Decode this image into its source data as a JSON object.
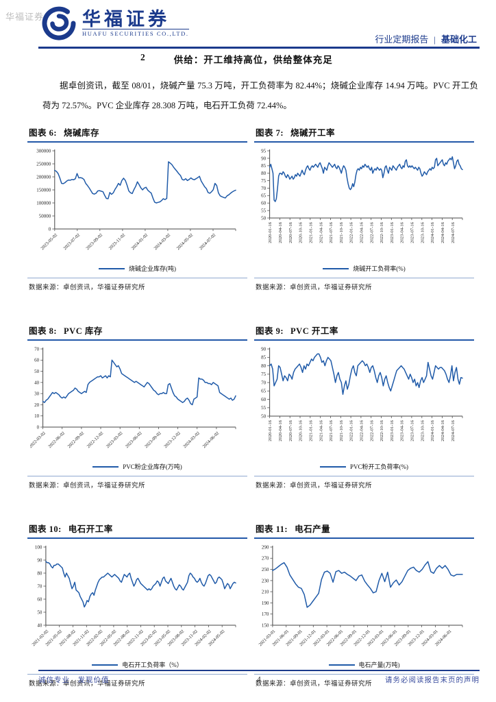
{
  "watermark": "华福证券",
  "header": {
    "logo_title": "华福证券",
    "logo_subtitle": "HUAFU SECURITIES CO.,LTD.",
    "report_type": "行业定期报告",
    "divider": "|",
    "industry": "基础化工"
  },
  "section": {
    "number": "2",
    "title": "供给：开工维持高位，供给整体充足"
  },
  "paragraph": "据卓创资讯，截至 08/01，烧碱产量 75.3 万吨，开工负荷率为 82.44%；烧碱企业库存 14.94 万吨。PVC 开工负荷为 72.57%。PVC 企业库存 28.308 万吨，电石开工负荷 72.44%。",
  "footer": {
    "left": "诚信专业　发现价值",
    "page": "4",
    "right": "请务必阅读报告末页的声明"
  },
  "colors": {
    "line": "#1f5aa8",
    "accent": "#1b3a8c",
    "title_rule": "#2257a8",
    "source_rule": "#8fa8d0"
  },
  "chart_data": [
    {
      "id": "fig6",
      "type": "line",
      "label": "图表 6:",
      "name": "烧碱库存",
      "legend": "烧碱企业库存(吨)",
      "source": "数据来源：卓创资讯，华福证券研究所",
      "ylim": [
        0,
        300000
      ],
      "yticks": [
        0,
        50000,
        100000,
        150000,
        200000,
        250000,
        300000
      ],
      "xtick_rotate": 45,
      "xticklabels": [
        "2023-05-02",
        "2023-07-02",
        "2023-09-02",
        "2023-11-02",
        "2024-01-02",
        "2024-03-02",
        "2024-05-02",
        "2024-07-02"
      ],
      "values": [
        225000,
        221000,
        213000,
        196000,
        175000,
        174000,
        178000,
        184000,
        188000,
        187000,
        190000,
        189000,
        193000,
        213000,
        196000,
        197000,
        195000,
        190000,
        175000,
        167000,
        158000,
        147000,
        136000,
        134000,
        137000,
        146000,
        147000,
        145000,
        143000,
        129000,
        117000,
        116000,
        140000,
        133000,
        139000,
        152000,
        162000,
        175000,
        168000,
        186000,
        195000,
        186000,
        168000,
        146000,
        139000,
        136000,
        151000,
        164000,
        181000,
        170000,
        158000,
        150000,
        157000,
        160000,
        149000,
        143000,
        138000,
        119000,
        103000,
        100000,
        102000,
        104000,
        109000,
        116000,
        113000,
        117000,
        258000,
        253000,
        247000,
        237000,
        229000,
        221000,
        212000,
        205000,
        190000,
        188000,
        193000,
        186000,
        190000,
        196000,
        191000,
        189000,
        193000,
        197000,
        202000,
        184000,
        173000,
        162000,
        155000,
        140000,
        137000,
        143000,
        151000,
        175000,
        167000,
        139000,
        127000,
        124000,
        121000,
        119000,
        127000,
        131000,
        137000,
        142000,
        146000,
        149000
      ]
    },
    {
      "id": "fig7",
      "type": "line",
      "label": "图表 7:",
      "name": "烧碱开工率",
      "legend": "烧碱开工负荷率(%)",
      "source": "数据来源：卓创资讯，华福证券研究所",
      "ylim": [
        50,
        95
      ],
      "yticks": [
        50,
        55,
        60,
        65,
        70,
        75,
        80,
        85,
        90,
        95
      ],
      "xtick_rotate": 90,
      "xticklabels": [
        "2020-01-16",
        "2020-04-16",
        "2020-07-16",
        "2020-10-16",
        "2021-01-16",
        "2021-04-16",
        "2021-07-16",
        "2021-10-16",
        "2022-01-16",
        "2022-04-16",
        "2022-07-16",
        "2022-10-16",
        "2023-01-16",
        "2023-04-16",
        "2023-07-16",
        "2023-10-16",
        "2024-01-16",
        "2024-04-16",
        "2024-07-16"
      ],
      "values": [
        84,
        86,
        83,
        80,
        62,
        61,
        63,
        70,
        78,
        80,
        80,
        79,
        81,
        80,
        78,
        77,
        79,
        78,
        76,
        77,
        78,
        76,
        77,
        79,
        78,
        80,
        79,
        78,
        80,
        82,
        80,
        79,
        82,
        84,
        85,
        83,
        82,
        84,
        85,
        84,
        85,
        86,
        85,
        84,
        86,
        87,
        85,
        83,
        80,
        84,
        83,
        82,
        85,
        87,
        86,
        85,
        84,
        85,
        86,
        84,
        83,
        85,
        84,
        82,
        80,
        83,
        85,
        84,
        82,
        77,
        73,
        70,
        69,
        70,
        73,
        71,
        74,
        79,
        82,
        83,
        82,
        84,
        83,
        85,
        84,
        86,
        85,
        84,
        85,
        83,
        82,
        84,
        80,
        82,
        83,
        82,
        84,
        83,
        82,
        83,
        82,
        77,
        80,
        84,
        85,
        82,
        80,
        84,
        83,
        82,
        85,
        84,
        83,
        82,
        84,
        85,
        86,
        84,
        83,
        85,
        84,
        88,
        89,
        85,
        84,
        85,
        84,
        85,
        84,
        83,
        84,
        83,
        82,
        84,
        83,
        80,
        78,
        79,
        81,
        80,
        79,
        81,
        82,
        83,
        82,
        84,
        83,
        84,
        89,
        90,
        85,
        86,
        87,
        88,
        89,
        86,
        85,
        87,
        86,
        88,
        89,
        90,
        89,
        91,
        87,
        83,
        85,
        88,
        89,
        86,
        85,
        83,
        82.4
      ]
    },
    {
      "id": "fig8",
      "type": "line",
      "label": "图表 8:",
      "name": "PVC 库存",
      "legend": "PVC粉企业库存(万吨)",
      "source": "数据来源：卓创资讯，华福证券研究所",
      "ylim": [
        0,
        70
      ],
      "yticks": [
        0,
        10,
        20,
        30,
        40,
        50,
        60,
        70
      ],
      "xtick_rotate": 45,
      "xticklabels": [
        "2022-03-02",
        "2022-06-02",
        "2022-09-02",
        "2022-12-02",
        "2023-03-02",
        "2023-06-02",
        "2023-09-02",
        "2023-12-02",
        "2024-03-02",
        "2024-06-02"
      ],
      "values": [
        23,
        22,
        24,
        25,
        27,
        29,
        31,
        30,
        31,
        30,
        29,
        27,
        26,
        27,
        26,
        28,
        30,
        31,
        32,
        33,
        35,
        34,
        32,
        31,
        30,
        31,
        32,
        31,
        38,
        40,
        41,
        42,
        43,
        44,
        45,
        45,
        46,
        44,
        45,
        46,
        44,
        46,
        45,
        60,
        58,
        56,
        54,
        55,
        52,
        48,
        47,
        46,
        45,
        44,
        43,
        42,
        41,
        40,
        41,
        40,
        39,
        38,
        37,
        36,
        38,
        40,
        39,
        37,
        35,
        33,
        32,
        30,
        29,
        30,
        30,
        31,
        30,
        30,
        38,
        39,
        35,
        31,
        28,
        27,
        25,
        24,
        23,
        22,
        23,
        25,
        26,
        24,
        21,
        20,
        25,
        26,
        27,
        44,
        43,
        43,
        42,
        40,
        40,
        39,
        39,
        38,
        40,
        39,
        38,
        37,
        31,
        30,
        29,
        28,
        27,
        26,
        25,
        26,
        24,
        25,
        28
      ]
    },
    {
      "id": "fig9",
      "type": "line",
      "label": "图表 9:",
      "name": "PVC 开工率",
      "legend": "PVC粉开工负荷率(%)",
      "source": "数据来源：卓创资讯，华福证券研究所",
      "ylim": [
        50,
        90
      ],
      "yticks": [
        50,
        55,
        60,
        65,
        70,
        75,
        80,
        85,
        90
      ],
      "xtick_rotate": 90,
      "xticklabels": [
        "2020-01-16",
        "2020-04-16",
        "2020-07-16",
        "2020-10-16",
        "2021-01-16",
        "2021-04-16",
        "2021-07-16",
        "2021-10-16",
        "2022-01-16",
        "2022-04-16",
        "2022-07-16",
        "2022-10-16",
        "2023-01-16",
        "2023-04-16",
        "2023-07-16",
        "2023-10-16",
        "2024-01-16",
        "2024-04-16",
        "2024-07-16"
      ],
      "values": [
        80,
        81,
        78,
        68,
        70,
        72,
        80,
        79,
        75,
        71,
        74,
        73,
        71,
        75,
        74,
        72,
        76,
        78,
        79,
        80,
        81,
        79,
        76,
        80,
        78,
        81,
        80,
        82,
        84,
        83,
        85,
        86,
        87,
        87,
        85,
        82,
        83,
        80,
        83,
        85,
        84,
        83,
        79,
        75,
        70,
        74,
        76,
        72,
        70,
        63,
        68,
        71,
        66,
        69,
        74,
        78,
        80,
        76,
        74,
        80,
        81,
        82,
        83,
        82,
        80,
        81,
        79,
        76,
        79,
        80,
        77,
        73,
        70,
        74,
        76,
        73,
        68,
        72,
        74,
        70,
        67,
        65,
        68,
        71,
        74,
        77,
        78,
        79,
        80,
        79,
        78,
        76,
        74,
        72,
        75,
        73,
        70,
        72,
        68,
        70,
        67,
        71,
        73,
        70,
        72,
        74,
        82,
        78,
        74,
        72,
        76,
        80,
        79,
        78,
        79,
        79,
        78,
        77,
        75,
        72,
        70,
        74,
        80,
        71,
        76,
        79,
        72,
        69,
        73,
        72.6
      ]
    },
    {
      "id": "fig10",
      "type": "line",
      "label": "图表 10:",
      "name": "电石开工率",
      "legend": "电石开工负荷率（%）",
      "source": "数据来源：卓创资讯，华福证券研究所",
      "ylim": [
        40,
        100
      ],
      "yticks": [
        40,
        50,
        60,
        70,
        80,
        90,
        100
      ],
      "xtick_rotate": 45,
      "xticklabels": [
        "2021-02-02",
        "2021-05-02",
        "2021-08-02",
        "2021-11-02",
        "2022-02-02",
        "2022-05-02",
        "2022-08-02",
        "2022-11-02",
        "2023-02-02",
        "2023-05-02",
        "2023-08-02",
        "2023-11-02",
        "2024-02-02",
        "2024-05-02"
      ],
      "values": [
        89,
        88,
        88,
        87,
        85,
        84,
        86,
        86,
        87,
        87,
        86,
        85,
        84,
        80,
        77,
        80,
        78,
        76,
        72,
        68,
        70,
        73,
        67,
        66,
        65,
        62,
        60,
        58,
        54,
        56,
        59,
        58,
        62,
        64,
        65,
        63,
        67,
        70,
        73,
        75,
        76,
        77,
        77,
        78,
        79,
        80,
        79,
        78,
        77,
        78,
        79,
        78,
        77,
        76,
        74,
        73,
        76,
        79,
        78,
        77,
        79,
        80,
        76,
        73,
        70,
        72,
        75,
        76,
        74,
        72,
        71,
        70,
        69,
        68,
        67,
        68,
        67,
        68,
        70,
        71,
        72,
        74,
        73,
        70,
        73,
        76,
        77,
        74,
        73,
        72,
        74,
        76,
        73,
        70,
        68,
        67,
        69,
        71,
        70,
        68,
        67,
        69,
        71,
        73,
        78,
        80,
        79,
        77,
        76,
        74,
        73,
        74,
        76,
        73,
        71,
        70,
        72,
        75,
        78,
        79,
        78,
        76,
        74,
        72,
        73,
        76,
        77,
        76,
        75,
        72,
        68,
        70,
        72,
        71,
        68,
        70,
        72,
        73,
        72.4
      ]
    },
    {
      "id": "fig11",
      "type": "line",
      "label": "图表 11:",
      "name": "电石产量",
      "legend": "电石产量(万吨)",
      "source": "数据来源：卓创资讯，华福证券研究所",
      "ylim": [
        150,
        290
      ],
      "yticks": [
        150,
        170,
        190,
        210,
        230,
        250,
        270,
        290
      ],
      "xtick_rotate": 45,
      "xticklabels": [
        "2021-03-01",
        "2021-06-01",
        "2021-09-01",
        "2021-12-01",
        "2022-03-01",
        "2022-06-01",
        "2022-09-01",
        "2022-12-01",
        "2023-03-01",
        "2023-06-01",
        "2023-09-01",
        "2023-12-01",
        "2024-03-01",
        "2024-06-01"
      ],
      "values": [
        248,
        251,
        255,
        259,
        262,
        254,
        240,
        232,
        224,
        218,
        216,
        205,
        182,
        186,
        193,
        200,
        207,
        232,
        245,
        247,
        243,
        227,
        246,
        248,
        243,
        245,
        241,
        238,
        234,
        230,
        238,
        240,
        229,
        222,
        216,
        208,
        210,
        230,
        243,
        228,
        245,
        218,
        226,
        231,
        222,
        228,
        238,
        248,
        252,
        254,
        248,
        245,
        250,
        258,
        264,
        246,
        243,
        252,
        257,
        252,
        257,
        250,
        240,
        238,
        241,
        241,
        241
      ]
    }
  ]
}
